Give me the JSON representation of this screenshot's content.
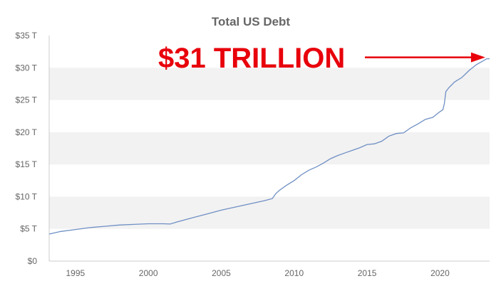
{
  "chart_data": {
    "type": "line",
    "title": "Total US Debt",
    "xlabel": "",
    "ylabel": "",
    "xlim": [
      1993.2,
      2023.4
    ],
    "ylim": [
      0,
      35
    ],
    "x_ticks": [
      1995,
      2000,
      2005,
      2010,
      2015,
      2020
    ],
    "x_tick_labels": [
      "1995",
      "2000",
      "2005",
      "2010",
      "2015",
      "2020"
    ],
    "y_ticks": [
      0,
      5,
      10,
      15,
      20,
      25,
      30,
      35
    ],
    "y_tick_labels": [
      "$0",
      "$5 T",
      "$10 T",
      "$15 T",
      "$20 T",
      "$25 T",
      "$30 T",
      "$35 T"
    ],
    "grid": "alternating horizontal bands",
    "legend": "none",
    "line_color": "#6f8fc4",
    "band_color": "#f2f2f2",
    "annotation": {
      "text": "$31 TRILLION",
      "color": "#e8000b",
      "arrow_to": [
        2023.2,
        31.4
      ]
    },
    "series": [
      {
        "x": [
          1993.2,
          1994.0,
          1995.0,
          1996.0,
          1997.0,
          1998.0,
          1999.0,
          2000.0,
          2001.0,
          2001.5,
          2002.0,
          2003.0,
          2004.0,
          2005.0,
          2006.0,
          2007.0,
          2008.0,
          2008.5,
          2008.75,
          2009.0,
          2009.5,
          2010.0,
          2010.5,
          2011.0,
          2011.5,
          2012.0,
          2012.5,
          2013.0,
          2013.5,
          2014.0,
          2014.5,
          2015.0,
          2015.5,
          2016.0,
          2016.5,
          2017.0,
          2017.5,
          2018.0,
          2018.5,
          2019.0,
          2019.5,
          2020.0,
          2020.2,
          2020.3,
          2020.4,
          2020.6,
          2021.0,
          2021.5,
          2022.0,
          2022.5,
          2022.9,
          2023.2,
          2023.4
        ],
        "values": [
          4.2,
          4.6,
          4.9,
          5.2,
          5.4,
          5.6,
          5.7,
          5.8,
          5.8,
          5.75,
          6.1,
          6.7,
          7.3,
          7.9,
          8.4,
          8.9,
          9.4,
          9.7,
          10.5,
          11.0,
          11.8,
          12.5,
          13.4,
          14.1,
          14.6,
          15.2,
          15.9,
          16.4,
          16.8,
          17.2,
          17.6,
          18.1,
          18.2,
          18.6,
          19.4,
          19.8,
          19.9,
          20.7,
          21.3,
          22.0,
          22.3,
          23.2,
          23.5,
          24.5,
          26.3,
          26.9,
          27.8,
          28.5,
          29.6,
          30.5,
          31.0,
          31.4,
          31.4
        ]
      }
    ]
  }
}
